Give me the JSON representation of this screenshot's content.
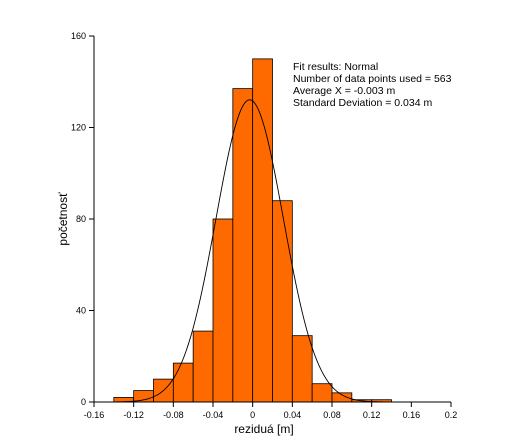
{
  "chart_data": {
    "type": "bar",
    "subtype": "histogram-with-fit",
    "xlabel": "reziduá [m]",
    "ylabel": "početnosť",
    "xlim": [
      -0.16,
      0.2
    ],
    "ylim": [
      0,
      160
    ],
    "x_ticks": [
      -0.16,
      -0.12,
      -0.08,
      -0.04,
      0,
      0.04,
      0.08,
      0.12,
      0.16,
      0.2
    ],
    "x_tick_labels": [
      "-0.16",
      "-0.12",
      "-0.08",
      "-0.04",
      "0",
      "0.04",
      "0.08",
      "0.12",
      "0.16",
      "0.2"
    ],
    "y_ticks": [
      0,
      40,
      80,
      120,
      160
    ],
    "y_tick_labels": [
      "0",
      "40",
      "80",
      "120",
      "160"
    ],
    "grid": false,
    "bar_color": "#ff6a00",
    "bar_edge_color": "#000000",
    "bin_width": 0.02,
    "bins": [
      {
        "x0": -0.14,
        "x1": -0.12,
        "count": 2
      },
      {
        "x0": -0.12,
        "x1": -0.1,
        "count": 5
      },
      {
        "x0": -0.1,
        "x1": -0.08,
        "count": 10
      },
      {
        "x0": -0.08,
        "x1": -0.06,
        "count": 17
      },
      {
        "x0": -0.06,
        "x1": -0.04,
        "count": 31
      },
      {
        "x0": -0.04,
        "x1": -0.02,
        "count": 80
      },
      {
        "x0": -0.02,
        "x1": 0.0,
        "count": 137
      },
      {
        "x0": 0.0,
        "x1": 0.02,
        "count": 150
      },
      {
        "x0": 0.02,
        "x1": 0.04,
        "count": 88
      },
      {
        "x0": 0.04,
        "x1": 0.06,
        "count": 29
      },
      {
        "x0": 0.06,
        "x1": 0.08,
        "count": 8
      },
      {
        "x0": 0.08,
        "x1": 0.1,
        "count": 4
      },
      {
        "x0": 0.1,
        "x1": 0.12,
        "count": 1
      },
      {
        "x0": 0.12,
        "x1": 0.14,
        "count": 1
      }
    ],
    "fit": {
      "distribution": "Normal",
      "mean": -0.003,
      "std": 0.034,
      "n": 563,
      "line_color": "#000000"
    },
    "annotation": [
      "Fit results: Normal",
      "Number of data points used = 563",
      "Average X = -0.003 m",
      "Standard Deviation = 0.034 m"
    ]
  }
}
